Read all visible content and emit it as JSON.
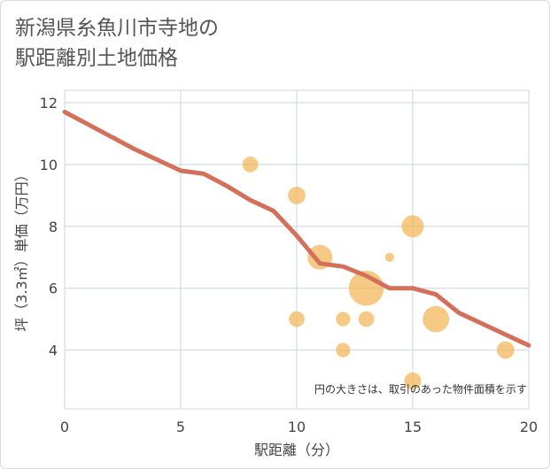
{
  "title_line1": "新潟県糸魚川市寺地の",
  "title_line2": "駅距離別土地価格",
  "chart_data": {
    "type": "scatter",
    "xlabel": "駅距離（分）",
    "ylabel": "坪（3.3㎡）単価（万円）",
    "xlim": [
      0,
      20
    ],
    "ylim": [
      2.1,
      12.4
    ],
    "xticks": [
      0,
      5,
      10,
      15,
      20
    ],
    "yticks": [
      4,
      6,
      8,
      10,
      12
    ],
    "note": "円の大きさは、取引のあった物件面積を示す",
    "colors": {
      "bubble": "#f2b655",
      "line": "#d4705a",
      "grid": "#c8d4e0"
    },
    "points": [
      {
        "x": 8,
        "y": 10.0,
        "size": 1.2
      },
      {
        "x": 10,
        "y": 9.0,
        "size": 1.5
      },
      {
        "x": 10,
        "y": 5.0,
        "size": 1.2
      },
      {
        "x": 11,
        "y": 7.0,
        "size": 3.0
      },
      {
        "x": 12,
        "y": 5.0,
        "size": 1.0
      },
      {
        "x": 12,
        "y": 4.0,
        "size": 1.0
      },
      {
        "x": 13,
        "y": 6.0,
        "size": 6.0
      },
      {
        "x": 13,
        "y": 5.0,
        "size": 1.2
      },
      {
        "x": 14,
        "y": 7.0,
        "size": 0.4
      },
      {
        "x": 15,
        "y": 8.0,
        "size": 2.4
      },
      {
        "x": 15,
        "y": 3.0,
        "size": 1.4
      },
      {
        "x": 16,
        "y": 5.0,
        "size": 3.4
      },
      {
        "x": 19,
        "y": 4.0,
        "size": 1.5
      }
    ],
    "trend": {
      "x": [
        0,
        1,
        2,
        3,
        4,
        5,
        6,
        7,
        8,
        9,
        10,
        11,
        12,
        13,
        14,
        15,
        16,
        17,
        18,
        19,
        20
      ],
      "y": [
        11.7,
        11.3,
        10.9,
        10.5,
        10.15,
        9.8,
        9.7,
        9.3,
        8.85,
        8.5,
        7.7,
        6.8,
        6.7,
        6.4,
        6.0,
        6.0,
        5.8,
        5.2,
        4.85,
        4.5,
        4.15
      ]
    }
  }
}
